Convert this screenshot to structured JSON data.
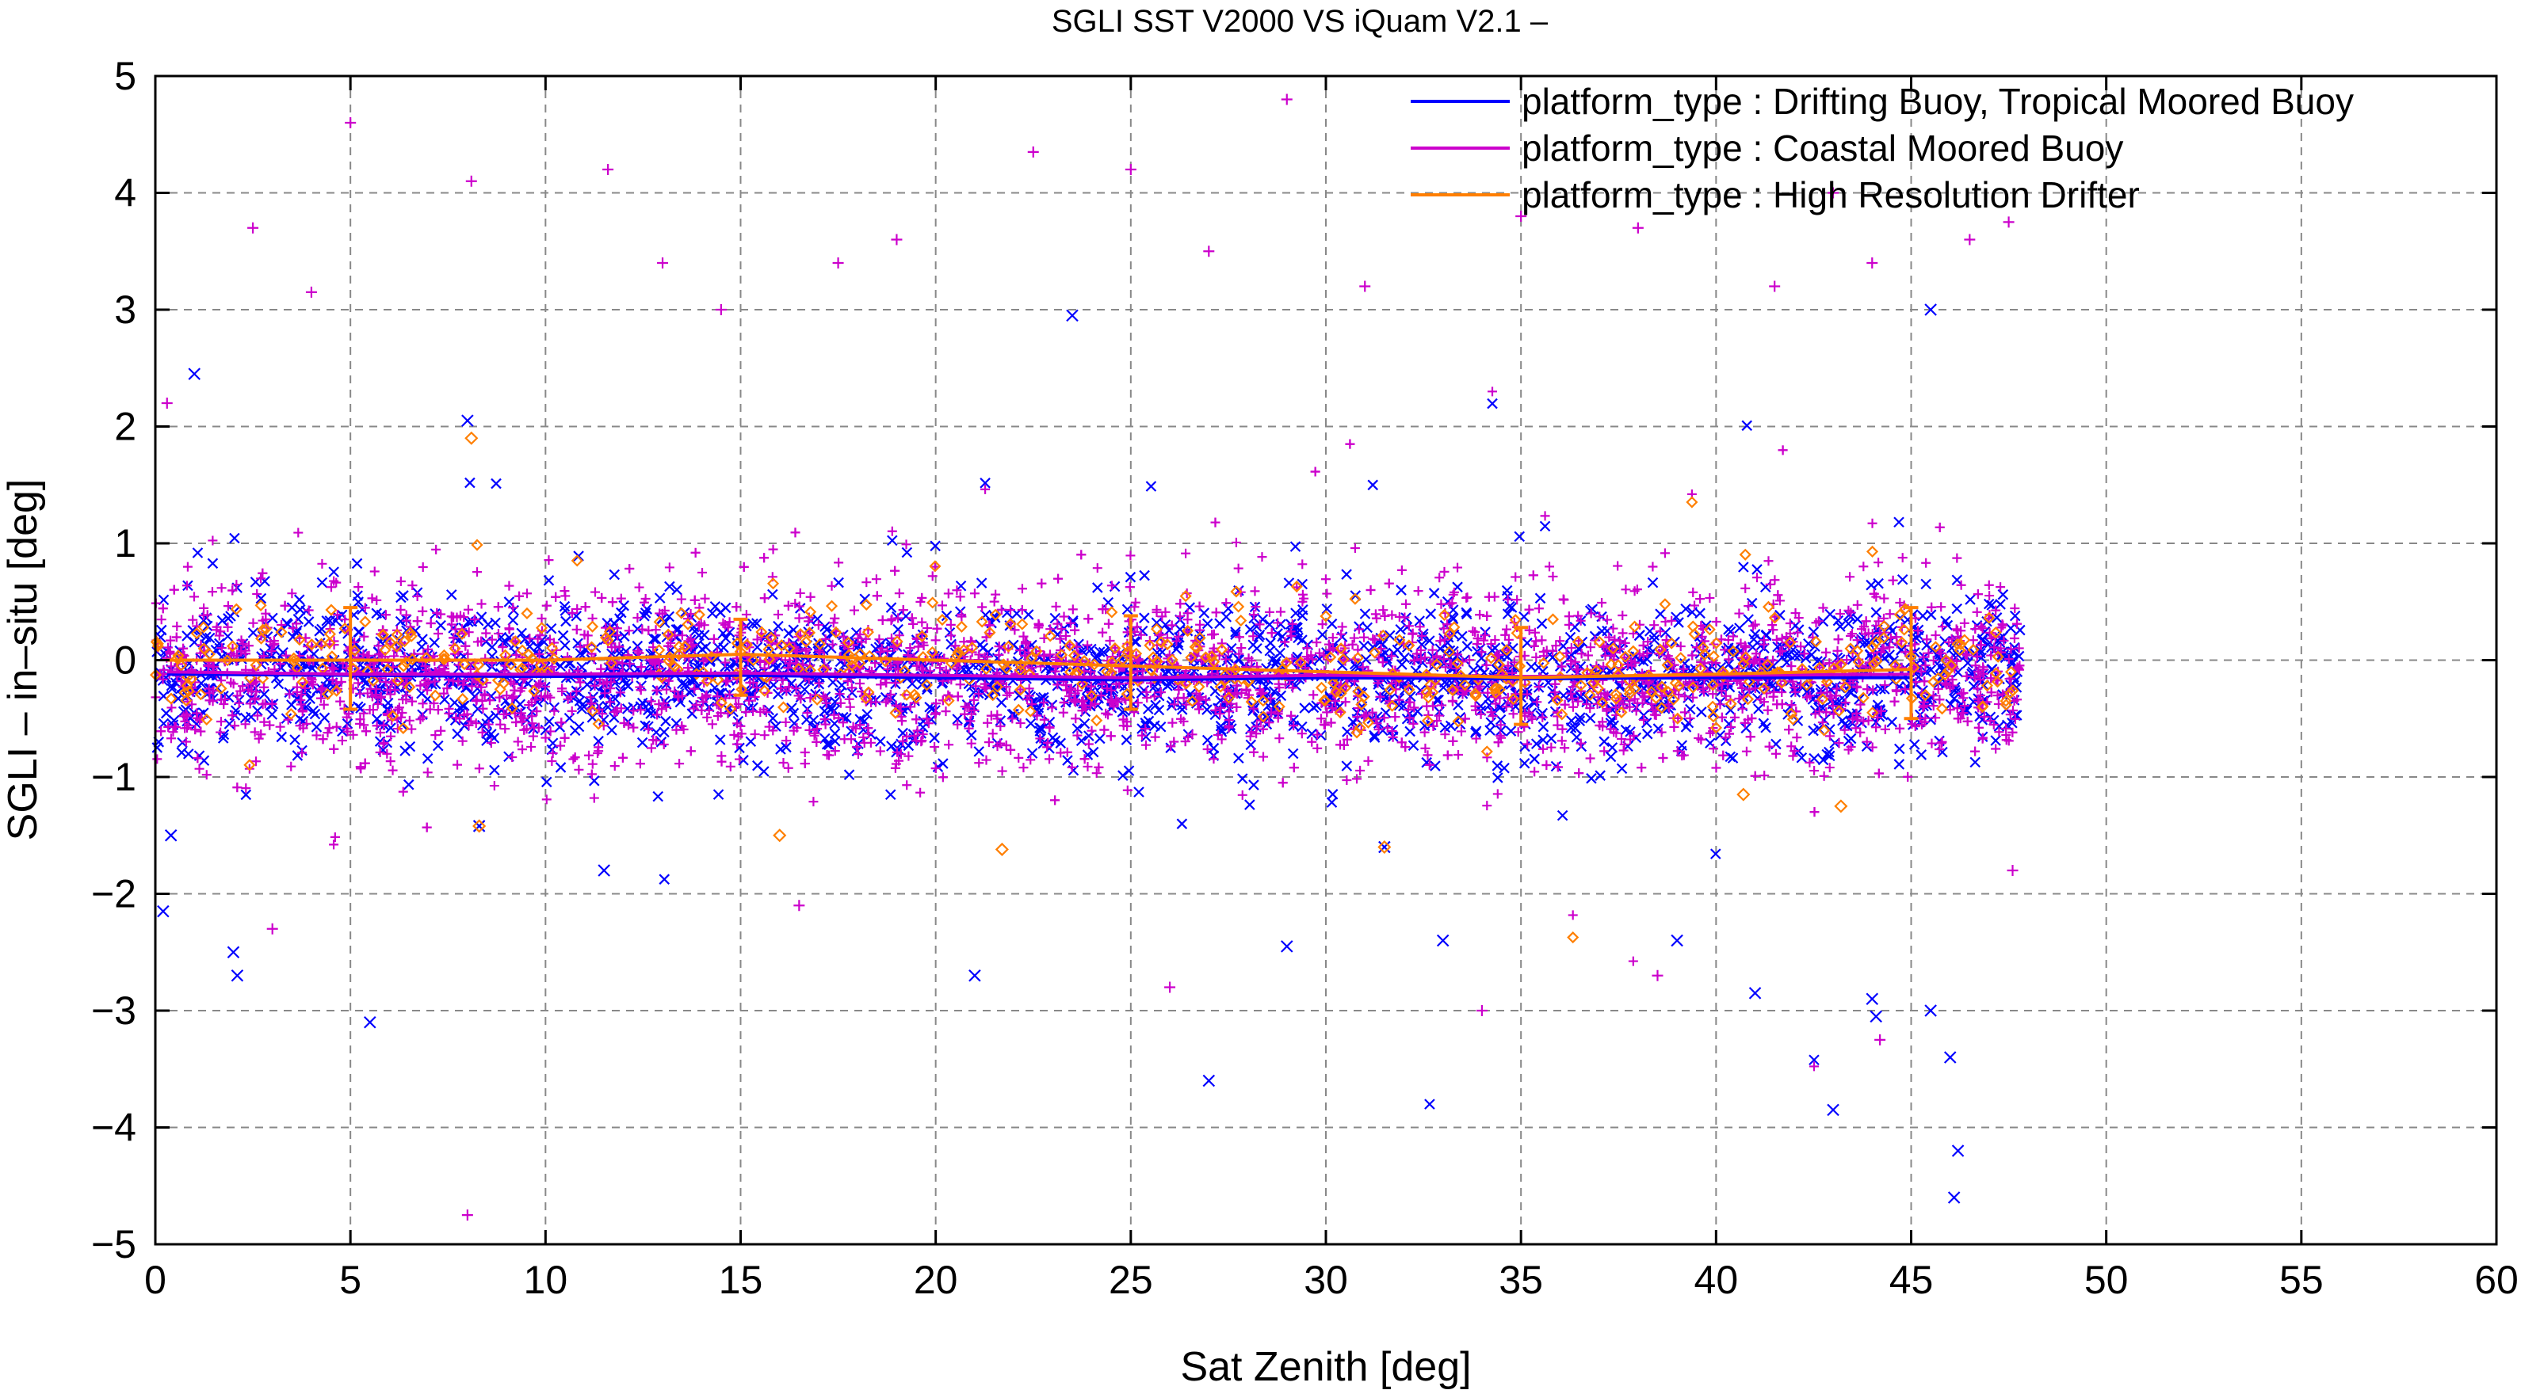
{
  "chart_data": {
    "type": "scatter",
    "title": "SGLI SST V2000 VS iQuam V2.1  –",
    "xlabel": "Sat Zenith [deg]",
    "ylabel": "SGLI – in–situ [deg]",
    "xlim": [
      0,
      60
    ],
    "ylim": [
      -5,
      5
    ],
    "xticks": [
      "0",
      "5",
      "10",
      "15",
      "20",
      "25",
      "30",
      "35",
      "40",
      "45",
      "50",
      "55",
      "60"
    ],
    "yticks": [
      "−5",
      "−4",
      "−3",
      "−2",
      "−1",
      "0",
      "1",
      "2",
      "3",
      "4",
      "5"
    ],
    "grid": true,
    "legend_position": "top-right",
    "series": [
      {
        "name": "platform_type : Drifting Buoy, Tropical Moored Buoy",
        "color": "#0000ff",
        "marker": "x",
        "mean_line": {
          "x": [
            0.3,
            5,
            10,
            15,
            20,
            25,
            30,
            35,
            40,
            45
          ],
          "y": [
            -0.12,
            -0.13,
            -0.14,
            -0.13,
            -0.15,
            -0.17,
            -0.15,
            -0.16,
            -0.15,
            -0.15
          ]
        },
        "outliers": [
          [
            1,
            2.45
          ],
          [
            0.4,
            -1.5
          ],
          [
            0.2,
            -2.15
          ],
          [
            2,
            -2.5
          ],
          [
            2.1,
            -2.7
          ],
          [
            5.5,
            -3.1
          ],
          [
            8.3,
            -1.42
          ],
          [
            8,
            2.05
          ],
          [
            11.5,
            -1.8
          ],
          [
            21,
            -2.7
          ],
          [
            27,
            -3.6
          ],
          [
            29,
            -2.45
          ],
          [
            31.5,
            -1.6
          ],
          [
            33,
            -2.4
          ],
          [
            39,
            -2.4
          ],
          [
            41,
            -2.85
          ],
          [
            43,
            -3.85
          ],
          [
            44,
            -2.9
          ],
          [
            44.1,
            -3.05
          ],
          [
            45.5,
            -3.0
          ],
          [
            46,
            -3.4
          ],
          [
            46.2,
            -4.2
          ],
          [
            46.1,
            -4.6
          ],
          [
            23.5,
            2.95
          ],
          [
            45.5,
            3.0
          ]
        ]
      },
      {
        "name": "platform_type : Coastal Moored Buoy",
        "color": "#cc00cc",
        "marker": "+",
        "mean_line": {
          "x": [
            0.3,
            5,
            10,
            15,
            20,
            25,
            30,
            35,
            40,
            45
          ],
          "y": [
            -0.1,
            -0.12,
            -0.12,
            -0.11,
            -0.13,
            -0.15,
            -0.13,
            -0.14,
            -0.13,
            -0.12
          ]
        },
        "outliers": [
          [
            5,
            4.6
          ],
          [
            8.1,
            4.1
          ],
          [
            11.6,
            4.2
          ],
          [
            22.5,
            4.35
          ],
          [
            25,
            4.2
          ],
          [
            29,
            4.8
          ],
          [
            8,
            -4.75
          ],
          [
            0.3,
            2.2
          ],
          [
            2.5,
            3.7
          ],
          [
            4,
            3.15
          ],
          [
            13,
            3.4
          ],
          [
            14.5,
            3.0
          ],
          [
            17.5,
            3.4
          ],
          [
            19,
            3.6
          ],
          [
            27,
            3.5
          ],
          [
            31,
            3.2
          ],
          [
            35,
            3.8
          ],
          [
            38,
            3.7
          ],
          [
            41.5,
            3.2
          ],
          [
            43,
            4.0
          ],
          [
            44,
            3.4
          ],
          [
            46.5,
            3.6
          ],
          [
            47.5,
            3.75
          ],
          [
            3,
            -2.3
          ],
          [
            16.5,
            -2.1
          ],
          [
            26,
            -2.8
          ],
          [
            34,
            -3.0
          ],
          [
            38.5,
            -2.7
          ],
          [
            44.2,
            -3.25
          ],
          [
            47.6,
            -1.8
          ]
        ]
      },
      {
        "name": "platform_type : High Resolution Drifter",
        "color": "#ff7f00",
        "marker": "diamond",
        "mean_line": {
          "x": [
            0.3,
            5,
            10,
            15,
            20,
            25,
            30,
            35,
            40,
            45
          ],
          "y": [
            0.0,
            0.0,
            0.0,
            0.05,
            0.0,
            -0.05,
            -0.1,
            -0.15,
            -0.12,
            -0.08
          ]
        },
        "error_bars": [
          {
            "x": 5,
            "low": -0.42,
            "high": 0.45
          },
          {
            "x": 15,
            "low": -0.3,
            "high": 0.35
          },
          {
            "x": 25,
            "low": -0.42,
            "high": 0.38
          },
          {
            "x": 35,
            "low": -0.55,
            "high": 0.28
          },
          {
            "x": 45,
            "low": -0.5,
            "high": 0.45
          }
        ],
        "outliers": [
          [
            8.1,
            1.9
          ],
          [
            8.3,
            -1.42
          ],
          [
            31.5,
            -1.6
          ],
          [
            40.7,
            -1.15
          ],
          [
            43.2,
            -1.25
          ],
          [
            16,
            -1.5
          ],
          [
            21.7,
            -1.62
          ]
        ]
      }
    ],
    "point_cloud_summary": {
      "x_range": [
        0,
        47.8
      ],
      "core_y_range": [
        -0.6,
        0.4
      ]
    }
  }
}
